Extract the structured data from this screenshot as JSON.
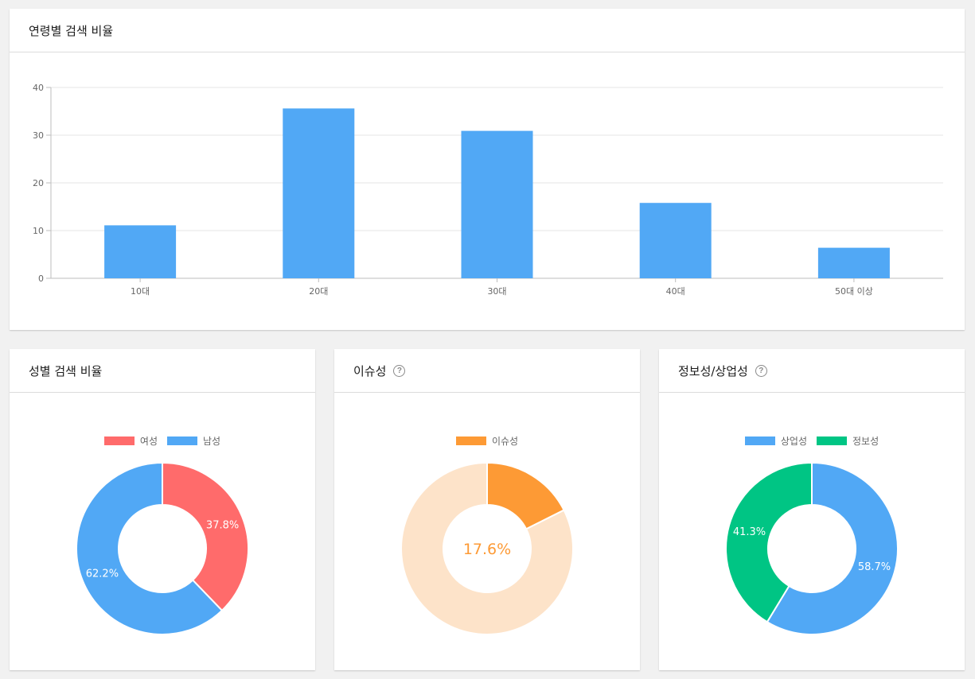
{
  "age_card": {
    "title": "연령별 검색 비율"
  },
  "gender_card": {
    "title": "성별 검색 비율"
  },
  "issue_card": {
    "title": "이슈성"
  },
  "info_card": {
    "title": "정보성/상업성"
  },
  "colors": {
    "blue": "#51a8f5",
    "red": "#ff6b6b",
    "orange": "#fd9a35",
    "orange_light": "#fde3c9",
    "green": "#00c584"
  },
  "chart_data": [
    {
      "type": "bar",
      "title": "연령별 검색 비율",
      "categories": [
        "10대",
        "20대",
        "30대",
        "40대",
        "50대 이상"
      ],
      "values": [
        11.1,
        35.6,
        30.9,
        15.8,
        6.4
      ],
      "yticks": [
        "0",
        "10",
        "20",
        "30",
        "40"
      ],
      "ylim": [
        0,
        40
      ],
      "grid": true,
      "color": "#51a8f5"
    },
    {
      "type": "pie",
      "title": "성별 검색 비율",
      "legend": [
        "여성",
        "남성"
      ],
      "values": [
        37.8,
        62.2
      ],
      "labels": [
        "37.8%",
        "62.2%"
      ],
      "colors": [
        "#ff6b6b",
        "#51a8f5"
      ]
    },
    {
      "type": "pie",
      "title": "이슈성",
      "legend": [
        "이슈성"
      ],
      "values": [
        17.6,
        82.4
      ],
      "center_label": "17.6%",
      "colors": [
        "#fd9a35",
        "#fde3c9"
      ]
    },
    {
      "type": "pie",
      "title": "정보성/상업성",
      "legend": [
        "상업성",
        "정보성"
      ],
      "values": [
        58.7,
        41.3
      ],
      "labels": [
        "58.7%",
        "41.3%"
      ],
      "colors": [
        "#51a8f5",
        "#00c584"
      ]
    }
  ]
}
